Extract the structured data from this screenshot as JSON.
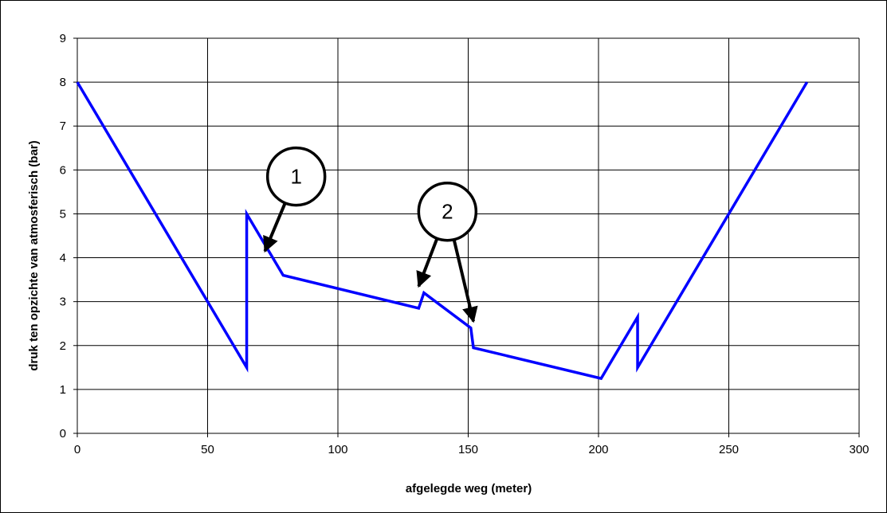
{
  "chart_data": {
    "type": "line",
    "title": "",
    "xlabel": "afgelegde  weg  (meter)",
    "ylabel": "druk ten opzichte van atmosferisch (bar)",
    "xlim": [
      0,
      300
    ],
    "ylim": [
      0,
      9
    ],
    "x_ticks": [
      0,
      50,
      100,
      150,
      200,
      250,
      300
    ],
    "y_ticks": [
      0,
      1,
      2,
      3,
      4,
      5,
      6,
      7,
      8,
      9
    ],
    "grid": true,
    "legend": "none",
    "series": [
      {
        "color": "#0000ff",
        "points": [
          [
            0,
            8.0
          ],
          [
            65,
            1.5
          ],
          [
            65,
            5.0
          ],
          [
            79,
            3.6
          ],
          [
            131,
            2.85
          ],
          [
            133,
            3.2
          ],
          [
            151,
            2.4
          ],
          [
            152,
            1.95
          ],
          [
            201,
            1.25
          ],
          [
            215,
            2.65
          ],
          [
            215,
            1.5
          ],
          [
            280,
            8.0
          ]
        ]
      }
    ],
    "annotations": [
      {
        "label": "1",
        "center": [
          84,
          5.85
        ],
        "arrows": [
          [
            72,
            4.15
          ]
        ]
      },
      {
        "label": "2",
        "center": [
          142,
          5.05
        ],
        "arrows": [
          [
            131,
            3.35
          ],
          [
            152,
            2.55
          ]
        ]
      }
    ]
  }
}
